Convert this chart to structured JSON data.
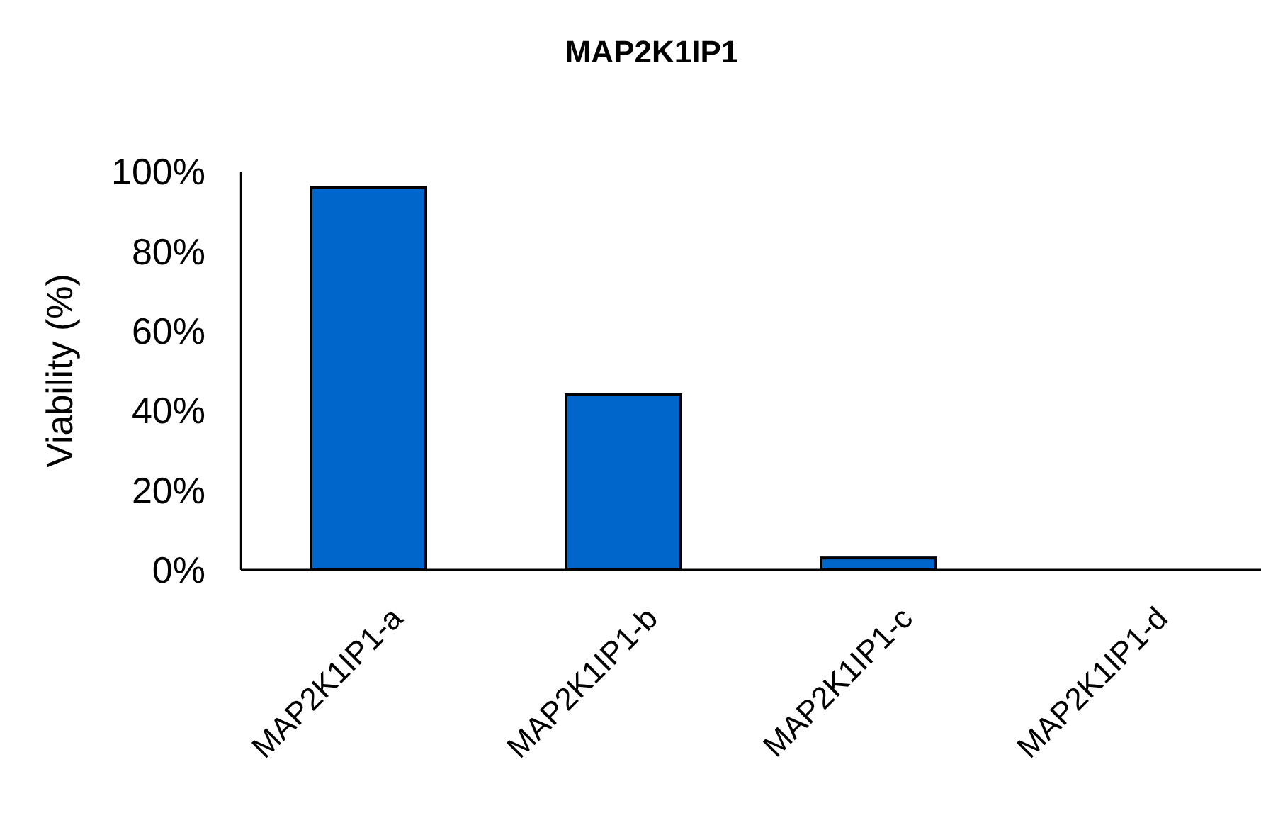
{
  "chart_data": {
    "type": "bar",
    "title": "MAP2K1IP1",
    "ylabel": "Viability (%)",
    "categories": [
      "MAP2K1IP1-a",
      "MAP2K1IP1-b",
      "MAP2K1IP1-c",
      "MAP2K1IP1-d"
    ],
    "values": [
      96,
      44,
      3,
      0
    ],
    "color": "#0066cc",
    "ylim": [
      0,
      100
    ],
    "yticks": [
      {
        "value": 0,
        "label": "0%"
      },
      {
        "value": 20,
        "label": "20%"
      },
      {
        "value": 40,
        "label": "40%"
      },
      {
        "value": 60,
        "label": "60%"
      },
      {
        "value": 80,
        "label": "80%"
      },
      {
        "value": 100,
        "label": "100%"
      }
    ],
    "grid": false
  }
}
